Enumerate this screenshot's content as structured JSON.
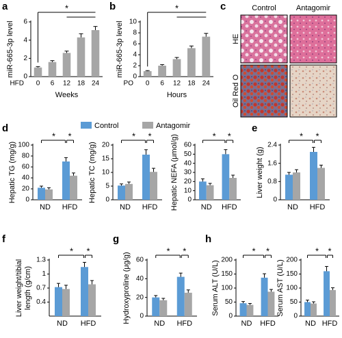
{
  "chart_data": [
    {
      "type": "bar",
      "label": "a",
      "ylabel": "miR-665-3p level",
      "x_prefix": "HFD",
      "categories": [
        "0",
        "6",
        "12",
        "18",
        "24"
      ],
      "xlabel": "Weeks",
      "color": "#a6a6a6",
      "values": [
        1.0,
        1.6,
        2.6,
        4.3,
        5.1
      ],
      "errors": [
        0.1,
        0.15,
        0.2,
        0.4,
        0.4
      ],
      "ylim": [
        0,
        6
      ],
      "yticks": [
        0,
        2,
        4,
        6
      ],
      "annotations": [
        "*"
      ]
    },
    {
      "type": "bar",
      "label": "b",
      "ylabel": "miR-665-3p level",
      "x_prefix": "PO",
      "categories": [
        "0",
        "6",
        "12",
        "18",
        "24"
      ],
      "xlabel": "Hours",
      "color": "#a6a6a6",
      "values": [
        1.0,
        2.0,
        3.2,
        5.2,
        7.3
      ],
      "errors": [
        0.1,
        0.2,
        0.3,
        0.4,
        0.6
      ],
      "ylim": [
        0,
        10
      ],
      "yticks": [
        0,
        2,
        4,
        6,
        8,
        10
      ],
      "annotations": [
        "*"
      ]
    },
    {
      "type": "grouped_bar",
      "label": "d",
      "ylabel": "Hepatic TG (mg/g)",
      "categories": [
        "ND",
        "HFD"
      ],
      "series": [
        {
          "name": "Control",
          "color": "#5b9bd5",
          "values": [
            22,
            70
          ],
          "errors": [
            3,
            7
          ]
        },
        {
          "name": "Antagomir",
          "color": "#a6a6a6",
          "values": [
            19,
            44
          ],
          "errors": [
            3,
            5
          ]
        }
      ],
      "ylim": [
        0,
        100
      ],
      "yticks": [
        0,
        20,
        40,
        60,
        80,
        100
      ],
      "annotations": [
        "*",
        "*"
      ]
    },
    {
      "type": "grouped_bar",
      "ylabel": "Hepatic TC (mg/g)",
      "categories": [
        "ND",
        "HFD"
      ],
      "series": [
        {
          "color": "#5b9bd5",
          "values": [
            5.2,
            16.5
          ],
          "errors": [
            0.6,
            1.8
          ]
        },
        {
          "color": "#a6a6a6",
          "values": [
            5.8,
            10.2
          ],
          "errors": [
            0.7,
            1.3
          ]
        }
      ],
      "ylim": [
        0,
        20
      ],
      "yticks": [
        0,
        5,
        10,
        15,
        20
      ],
      "annotations": [
        "*",
        "*"
      ]
    },
    {
      "type": "grouped_bar",
      "ylabel": "Hepatic NEFA (μmol/g)",
      "categories": [
        "ND",
        "HFD"
      ],
      "series": [
        {
          "color": "#5b9bd5",
          "values": [
            20,
            50
          ],
          "errors": [
            3,
            5
          ]
        },
        {
          "color": "#a6a6a6",
          "values": [
            16,
            24
          ],
          "errors": [
            2,
            3
          ]
        }
      ],
      "ylim": [
        0,
        60
      ],
      "yticks": [
        0,
        10,
        20,
        30,
        40,
        50,
        60
      ],
      "annotations": [
        "*",
        "*"
      ]
    },
    {
      "type": "grouped_bar",
      "label": "e",
      "ylabel": "Liver weight (g)",
      "categories": [
        "ND",
        "HFD"
      ],
      "series": [
        {
          "color": "#5b9bd5",
          "values": [
            1.1,
            2.1
          ],
          "errors": [
            0.1,
            0.2
          ]
        },
        {
          "color": "#a6a6a6",
          "values": [
            1.2,
            1.4
          ],
          "errors": [
            0.12,
            0.12
          ]
        }
      ],
      "ylim": [
        0,
        2.4
      ],
      "yticks": [
        0,
        0.8,
        1.6,
        2.4
      ],
      "annotations": [
        "*",
        "*"
      ]
    },
    {
      "type": "grouped_bar",
      "label": "f",
      "ylabel": [
        "Liver weight/tibial",
        "length (g/cm)"
      ],
      "categories": [
        "ND",
        "HFD"
      ],
      "series": [
        {
          "color": "#5b9bd5",
          "values": [
            0.72,
            1.15
          ],
          "errors": [
            0.08,
            0.1
          ]
        },
        {
          "color": "#a6a6a6",
          "values": [
            0.68,
            0.78
          ],
          "errors": [
            0.08,
            0.08
          ]
        }
      ],
      "ylim": [
        0.1,
        1.3
      ],
      "yticks": [
        0.4,
        0.7,
        1,
        1.3
      ],
      "annotations": [
        "*",
        "*"
      ]
    },
    {
      "type": "grouped_bar",
      "label": "g",
      "ylabel": "Hydroxyproline (μg/g)",
      "categories": [
        "ND",
        "HFD"
      ],
      "series": [
        {
          "color": "#5b9bd5",
          "values": [
            20,
            42
          ],
          "errors": [
            2,
            4
          ]
        },
        {
          "color": "#a6a6a6",
          "values": [
            17,
            25
          ],
          "errors": [
            2,
            3
          ]
        }
      ],
      "ylim": [
        0,
        60
      ],
      "yticks": [
        0,
        20,
        40,
        60
      ],
      "annotations": [
        "*",
        "*"
      ]
    },
    {
      "type": "grouped_bar",
      "label": "h",
      "ylabel": "Serum ALT (U/L)",
      "categories": [
        "ND",
        "HFD"
      ],
      "series": [
        {
          "color": "#5b9bd5",
          "values": [
            46,
            137
          ],
          "errors": [
            6,
            14
          ]
        },
        {
          "color": "#a6a6a6",
          "values": [
            40,
            87
          ],
          "errors": [
            5,
            8
          ]
        }
      ],
      "ylim": [
        0,
        200
      ],
      "yticks": [
        0,
        50,
        100,
        150,
        200
      ],
      "annotations": [
        "*",
        "*"
      ]
    },
    {
      "type": "grouped_bar",
      "ylabel": "Serum AST (U/L)",
      "categories": [
        "ND",
        "HFD"
      ],
      "series": [
        {
          "color": "#5b9bd5",
          "values": [
            50,
            160
          ],
          "errors": [
            7,
            17
          ]
        },
        {
          "color": "#a6a6a6",
          "values": [
            45,
            93
          ],
          "errors": [
            6,
            8
          ]
        }
      ],
      "ylim": [
        0,
        200
      ],
      "yticks": [
        0,
        50,
        100,
        150,
        200
      ],
      "annotations": [
        "*",
        "*"
      ]
    }
  ],
  "image_panel": {
    "label": "c",
    "columns": [
      "Control",
      "Antagomir"
    ],
    "rows": [
      "HE",
      "Oil Red O"
    ]
  }
}
